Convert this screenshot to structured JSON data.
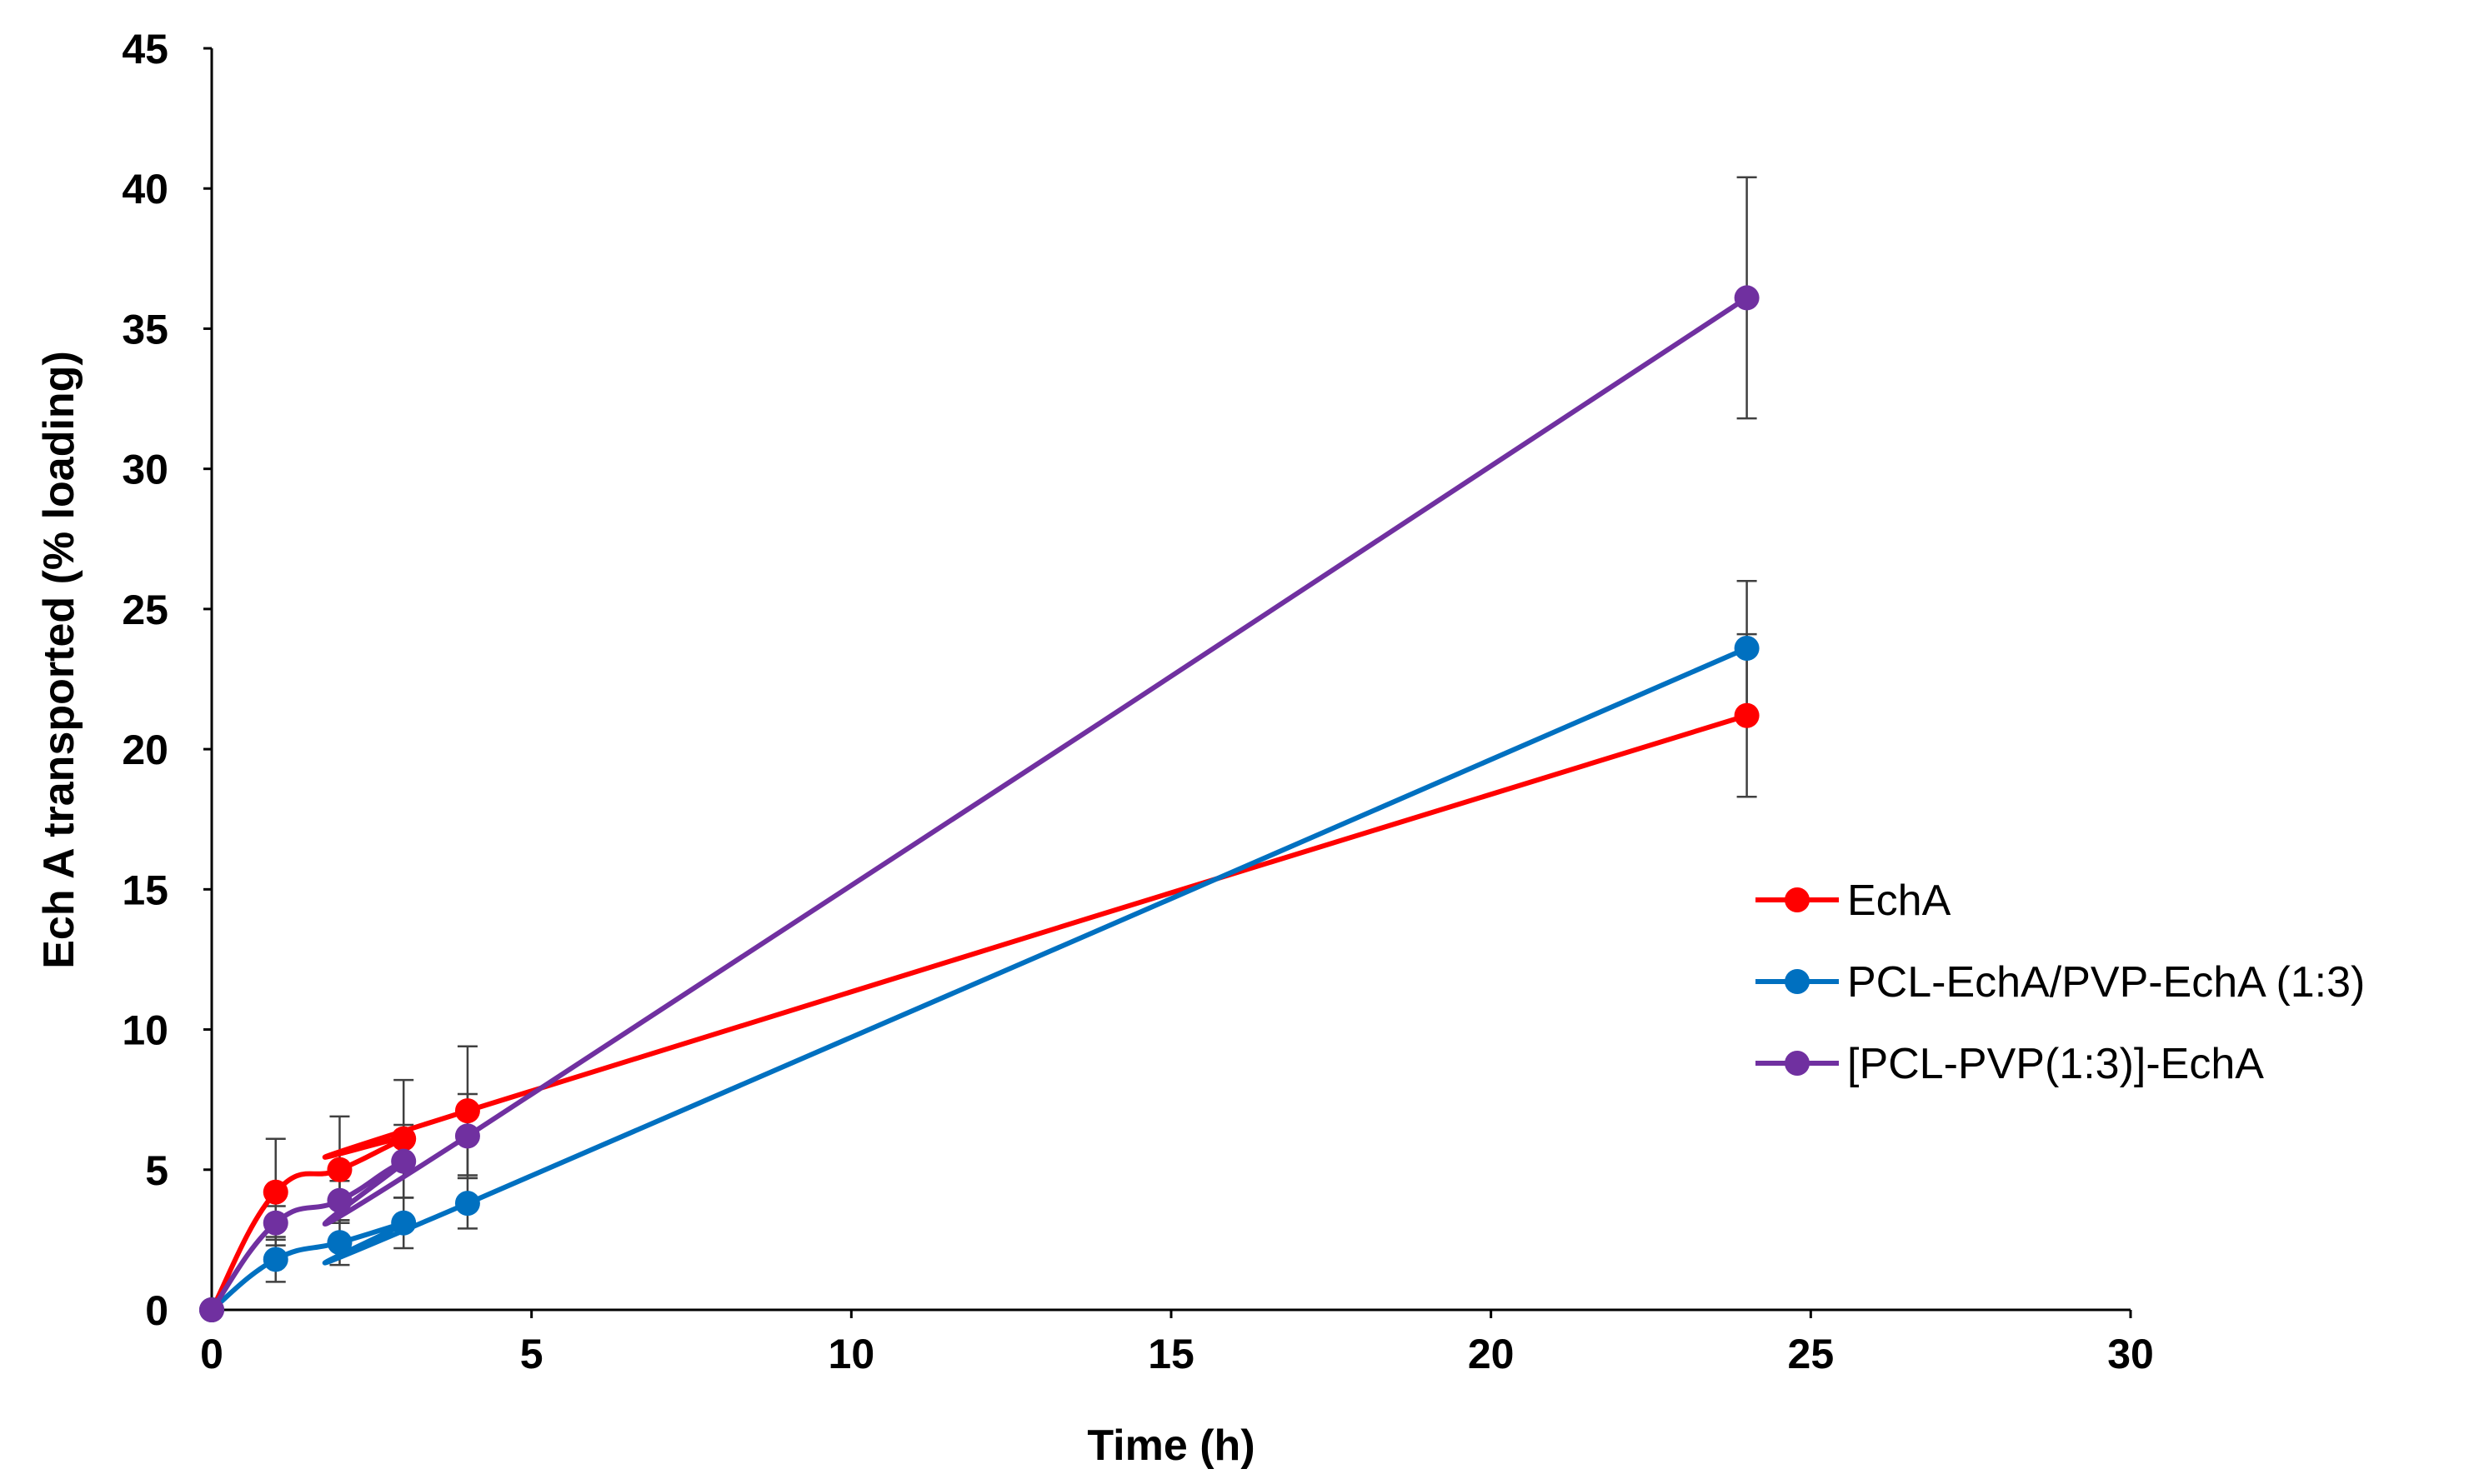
{
  "chart_data": {
    "type": "line",
    "title": "",
    "xlabel": "Time (h)",
    "ylabel": "Ech A transported (% loading)",
    "xlim": [
      0,
      30
    ],
    "ylim": [
      0,
      45
    ],
    "x_ticks": [
      0,
      5,
      10,
      15,
      20,
      25,
      30
    ],
    "y_ticks": [
      0,
      5,
      10,
      15,
      20,
      25,
      30,
      35,
      40,
      45
    ],
    "x_tick_labels": [
      "0",
      "5",
      "10",
      "15",
      "20",
      "25",
      "30"
    ],
    "y_tick_labels": [
      "0",
      "5",
      "10",
      "15",
      "20",
      "25",
      "30",
      "35",
      "40",
      "45"
    ],
    "grid": false,
    "legend_position": "right",
    "series": [
      {
        "name": "EchA",
        "color": "#ff0000",
        "x": [
          0,
          1,
          2,
          3,
          4,
          24
        ],
        "values": [
          0,
          4.2,
          5.0,
          6.1,
          7.1,
          21.2
        ],
        "error": [
          0,
          1.9,
          1.9,
          2.1,
          2.3,
          2.9
        ]
      },
      {
        "name": "PCL-EchA/PVP-EchA (1:3)",
        "color": "#0070c0",
        "x": [
          0,
          1,
          2,
          3,
          4,
          24
        ],
        "values": [
          0,
          1.8,
          2.4,
          3.1,
          3.8,
          23.6
        ],
        "error": [
          0,
          0.8,
          0.8,
          0.9,
          0.9,
          2.4
        ]
      },
      {
        "name": "[PCL-PVP(1:3)]-EchA",
        "color": "#7030a0",
        "x": [
          0,
          1,
          2,
          3,
          4,
          24
        ],
        "values": [
          0,
          3.1,
          3.9,
          5.3,
          6.2,
          36.1
        ],
        "error": [
          0,
          0.6,
          0.7,
          1.3,
          1.5,
          4.3
        ]
      }
    ]
  }
}
